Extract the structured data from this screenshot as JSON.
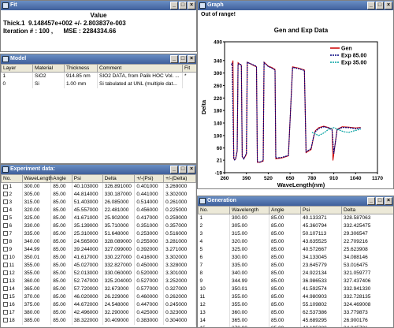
{
  "fit": {
    "title": "Fit",
    "header": "Value",
    "line1": "Thick.1  9.148457e+002 +/- 2.803837e-003",
    "line2": "Iteration # : 100 ,      MSE : 2284334.66"
  },
  "model": {
    "title": "Model",
    "columns": [
      "Layer",
      "Material",
      "Thickness",
      "Comment",
      "Fit"
    ],
    "rows": [
      [
        "1",
        "SiO2",
        "914.85 nm",
        "SIO2 DATA, from Palik HOC Vol. ...",
        "*"
      ],
      [
        "0",
        "Si",
        "1.00 mm",
        "Si tabulated at UNL (multiple dat...",
        ""
      ]
    ]
  },
  "experiment": {
    "title": "Experiment data:",
    "columns": [
      "No.",
      "WaveLength",
      "Angle",
      "Psi",
      "Delta",
      "+/-(Psi)",
      "+/-(Delta)"
    ],
    "rows": [
      [
        "1",
        "300.00",
        "85.00",
        "40.103000",
        "326.891000",
        "0.401000",
        "3.269000"
      ],
      [
        "2",
        "305.00",
        "85.00",
        "44.814000",
        "330.187000",
        "0.441000",
        "3.302000"
      ],
      [
        "3",
        "315.00",
        "85.00",
        "51.403000",
        "26.085000",
        "0.514000",
        "0.261000"
      ],
      [
        "4",
        "320.00",
        "85.00",
        "45.557000",
        "22.481000",
        "0.456000",
        "0.225000"
      ],
      [
        "5",
        "325.00",
        "85.00",
        "41.671000",
        "25.902000",
        "0.417000",
        "0.259000"
      ],
      [
        "6",
        "330.00",
        "85.00",
        "35.139000",
        "35.710000",
        "0.351000",
        "0.357000"
      ],
      [
        "7",
        "335.00",
        "85.00",
        "25.310000",
        "51.648000",
        "0.253000",
        "0.516000"
      ],
      [
        "8",
        "340.00",
        "85.00",
        "24.565000",
        "328.089000",
        "0.255000",
        "3.281000"
      ],
      [
        "9",
        "344.99",
        "85.00",
        "39.244000",
        "327.099000",
        "0.392000",
        "3.271000"
      ],
      [
        "10",
        "350.01",
        "85.00",
        "41.617000",
        "330.227000",
        "0.416000",
        "3.302000"
      ],
      [
        "11",
        "355.00",
        "85.00",
        "45.027000",
        "332.827000",
        "0.450000",
        "3.328000"
      ],
      [
        "12",
        "355.00",
        "85.00",
        "52.013000",
        "330.060000",
        "0.520000",
        "3.301000"
      ],
      [
        "13",
        "360.00",
        "85.00",
        "52.747000",
        "325.204000",
        "0.527000",
        "3.252000"
      ],
      [
        "14",
        "365.00",
        "85.00",
        "57.720000",
        "32.673000",
        "0.577000",
        "0.327000"
      ],
      [
        "15",
        "370.00",
        "85.00",
        "46.020000",
        "26.229000",
        "0.460000",
        "0.262000"
      ],
      [
        "16",
        "375.00",
        "85.00",
        "44.672000",
        "24.548000",
        "0.447000",
        "0.245000"
      ],
      [
        "17",
        "380.00",
        "85.00",
        "42.496000",
        "32.290000",
        "0.425000",
        "0.323000"
      ],
      [
        "18",
        "385.00",
        "85.00",
        "38.322000",
        "30.409000",
        "0.383000",
        "0.304000"
      ]
    ]
  },
  "graph": {
    "title": "Graph",
    "warning": "Out of range!",
    "chart_data": {
      "type": "line",
      "title": "Gen and Exp Data",
      "xlabel": "WaveLength(nm)",
      "ylabel": "Delta",
      "xlim": [
        260,
        1170
      ],
      "ylim": [
        -19,
        400
      ],
      "xticks": [
        260,
        390,
        520,
        650,
        780,
        910,
        1040,
        1170
      ],
      "yticks": [
        -19,
        21,
        60,
        100,
        140,
        180,
        220,
        260,
        300,
        340,
        400
      ],
      "legend_placement": "top-right",
      "series": [
        {
          "name": "Gen",
          "color": "#cc0000",
          "points": [
            [
              300,
              327
            ],
            [
              305,
              330
            ],
            [
              310,
              340
            ],
            [
              315,
              26
            ],
            [
              320,
              22
            ],
            [
              325,
              24
            ],
            [
              330,
              35
            ],
            [
              335,
              50
            ],
            [
              340,
              333
            ],
            [
              350,
              328
            ],
            [
              360,
              325
            ],
            [
              365,
              32
            ],
            [
              375,
              26
            ],
            [
              380,
              30
            ],
            [
              390,
              40
            ],
            [
              395,
              335
            ],
            [
              440,
              322
            ],
            [
              450,
              320
            ],
            [
              455,
              14
            ],
            [
              470,
              14
            ],
            [
              480,
              16
            ],
            [
              490,
              18
            ],
            [
              495,
              335
            ],
            [
              520,
              322
            ],
            [
              540,
              318
            ],
            [
              560,
              312
            ],
            [
              565,
              25
            ],
            [
              600,
              28
            ],
            [
              640,
              35
            ],
            [
              665,
              320
            ],
            [
              700,
              316
            ],
            [
              735,
              310
            ],
            [
              745,
              45
            ],
            [
              775,
              55
            ],
            [
              790,
              95
            ],
            [
              800,
              115
            ],
            [
              820,
              125
            ],
            [
              850,
              130
            ],
            [
              880,
              125
            ],
            [
              900,
              120
            ],
            [
              905,
              20
            ],
            [
              910,
              40
            ],
            [
              930,
              120
            ],
            [
              960,
              128
            ],
            [
              1000,
              127
            ],
            [
              1040,
              124
            ],
            [
              1070,
              126
            ]
          ]
        },
        {
          "name": "Exp 85.00",
          "color": "#000080",
          "points": [
            [
              300,
              327
            ],
            [
              305,
              330
            ],
            [
              315,
              26
            ],
            [
              320,
              22
            ],
            [
              325,
              26
            ],
            [
              330,
              36
            ],
            [
              335,
              52
            ],
            [
              340,
              328
            ],
            [
              350,
              330
            ],
            [
              360,
              325
            ],
            [
              365,
              33
            ],
            [
              375,
              25
            ],
            [
              380,
              32
            ],
            [
              390,
              42
            ],
            [
              395,
              334
            ],
            [
              440,
              324
            ],
            [
              450,
              321
            ],
            [
              455,
              16
            ],
            [
              470,
              15
            ],
            [
              480,
              17
            ],
            [
              490,
              20
            ],
            [
              495,
              333
            ],
            [
              520,
              321
            ],
            [
              540,
              316
            ],
            [
              560,
              310
            ],
            [
              565,
              28
            ],
            [
              600,
              30
            ],
            [
              640,
              36
            ],
            [
              665,
              318
            ],
            [
              700,
              314
            ],
            [
              735,
              308
            ],
            [
              745,
              48
            ],
            [
              775,
              58
            ],
            [
              790,
              97
            ],
            [
              800,
              112
            ],
            [
              820,
              122
            ],
            [
              850,
              128
            ],
            [
              880,
              124
            ],
            [
              900,
              118
            ],
            [
              910,
              42
            ],
            [
              930,
              118
            ],
            [
              960,
              126
            ],
            [
              1000,
              125
            ],
            [
              1040,
              122
            ],
            [
              1070,
              124
            ]
          ]
        },
        {
          "name": "Exp 35.00",
          "color": "#00a0a0",
          "points": [
            [
              780,
              110
            ],
            [
              800,
              105
            ],
            [
              820,
              100
            ],
            [
              850,
              108
            ],
            [
              880,
              120
            ],
            [
              910,
              125
            ],
            [
              940,
              118
            ],
            [
              970,
              112
            ],
            [
              1000,
              110
            ],
            [
              1030,
              115
            ],
            [
              1070,
              120
            ]
          ]
        }
      ]
    }
  },
  "generation": {
    "title": "Generation",
    "columns": [
      "No.",
      "Wavelength",
      "Angle",
      "Psi",
      "Delta"
    ],
    "rows": [
      [
        "1",
        "300.00",
        "85.00",
        "40.133371",
        "328.587063"
      ],
      [
        "2",
        "305.00",
        "85.00",
        "45.360794",
        "332.425475"
      ],
      [
        "3",
        "315.00",
        "85.00",
        "50.107113",
        "29.306547"
      ],
      [
        "4",
        "320.00",
        "85.00",
        "43.635525",
        "22.709216"
      ],
      [
        "5",
        "325.00",
        "85.00",
        "40.572667",
        "25.623908"
      ],
      [
        "6",
        "330.00",
        "85.00",
        "34.133045",
        "34.088146"
      ],
      [
        "7",
        "335.00",
        "85.00",
        "23.645779",
        "53.016475"
      ],
      [
        "8",
        "340.00",
        "85.00",
        "24.922134",
        "321.059777"
      ],
      [
        "9",
        "344.99",
        "85.00",
        "36.986533",
        "327.437406"
      ],
      [
        "10",
        "350.01",
        "85.00",
        "41.592574",
        "332.941330"
      ],
      [
        "11",
        "355.00",
        "85.00",
        "44.980903",
        "332.728135"
      ],
      [
        "12",
        "355.00",
        "85.00",
        "55.109802",
        "324.469008"
      ],
      [
        "13",
        "360.00",
        "85.00",
        "62.537386",
        "33.779873"
      ],
      [
        "14",
        "365.00",
        "85.00",
        "45.689295",
        "26.900176"
      ],
      [
        "15",
        "370.00",
        "85.00",
        "43.195280",
        "24.245721"
      ],
      [
        "16",
        "375.00",
        "85.00",
        "40.523651",
        "25.900976"
      ]
    ]
  }
}
